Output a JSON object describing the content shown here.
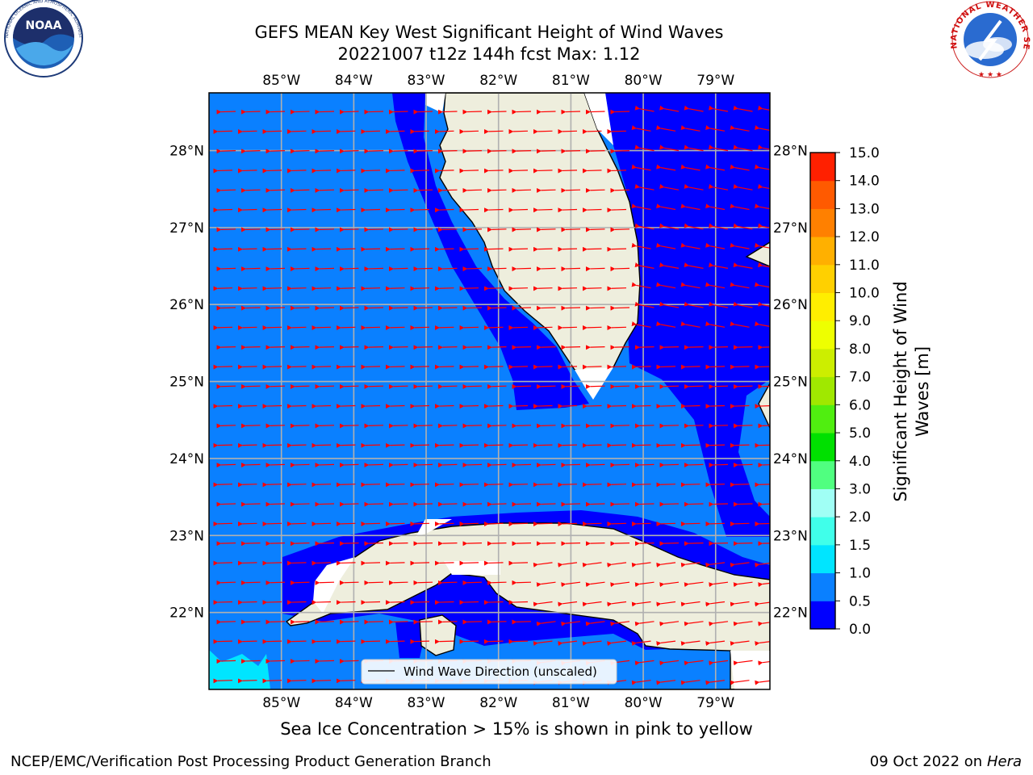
{
  "title": {
    "line1": "GEFS MEAN Key West Significant Height of Wind Waves",
    "line2": "20221007 t12z 144h fcst   Max: 1.12"
  },
  "logos": {
    "left": {
      "name": "noaa-logo",
      "text": "NOAA",
      "ring_text": "NATIONAL OCEANIC AND ATMOSPHERIC ADMINISTRATION · U.S. DEPARTMENT OF COMMERCE"
    },
    "right": {
      "name": "nws-logo",
      "ring_text": "NATIONAL WEATHER SERVICE"
    }
  },
  "map": {
    "lon_ticks": [
      "85°W",
      "84°W",
      "83°W",
      "82°W",
      "81°W",
      "80°W",
      "79°W"
    ],
    "lat_ticks": [
      "28°N",
      "27°N",
      "26°N",
      "25°N",
      "24°N",
      "23°N",
      "22°N"
    ],
    "extent": {
      "lon_min": -86.0,
      "lon_max": -78.25,
      "lat_min": 21.0,
      "lat_max": 28.75
    },
    "legend_label": "Wind Wave Direction (unscaled)",
    "land_color": "#eeeedd",
    "coast_color": "#000000",
    "arrow_color": "#ff0000",
    "grid_color": "#b0b0b0"
  },
  "colorbar": {
    "label_line1": "Significant Height of Wind",
    "label_line2": "Waves [m]",
    "levels": [
      "0.0",
      "0.5",
      "1.0",
      "1.5",
      "2.0",
      "3.0",
      "4.0",
      "5.0",
      "6.0",
      "7.0",
      "8.0",
      "9.0",
      "10.0",
      "11.0",
      "12.0",
      "13.0",
      "14.0",
      "15.0"
    ],
    "colors": [
      "#0000ff",
      "#0a80ff",
      "#00e5ff",
      "#40ffea",
      "#a0fff5",
      "#50ff80",
      "#00e000",
      "#50ee10",
      "#a0e800",
      "#ccee00",
      "#eeff00",
      "#ffee00",
      "#ffd000",
      "#ffb000",
      "#ff8000",
      "#ff5a00",
      "#ff2000"
    ]
  },
  "footnote": "Sea Ice Concentration > 15% is shown in pink to yellow",
  "credit": {
    "left": "NCEP/EMC/Verification Post Processing Product Generation Branch",
    "right_date": "09 Oct 2022 on ",
    "right_host": "Hera"
  }
}
